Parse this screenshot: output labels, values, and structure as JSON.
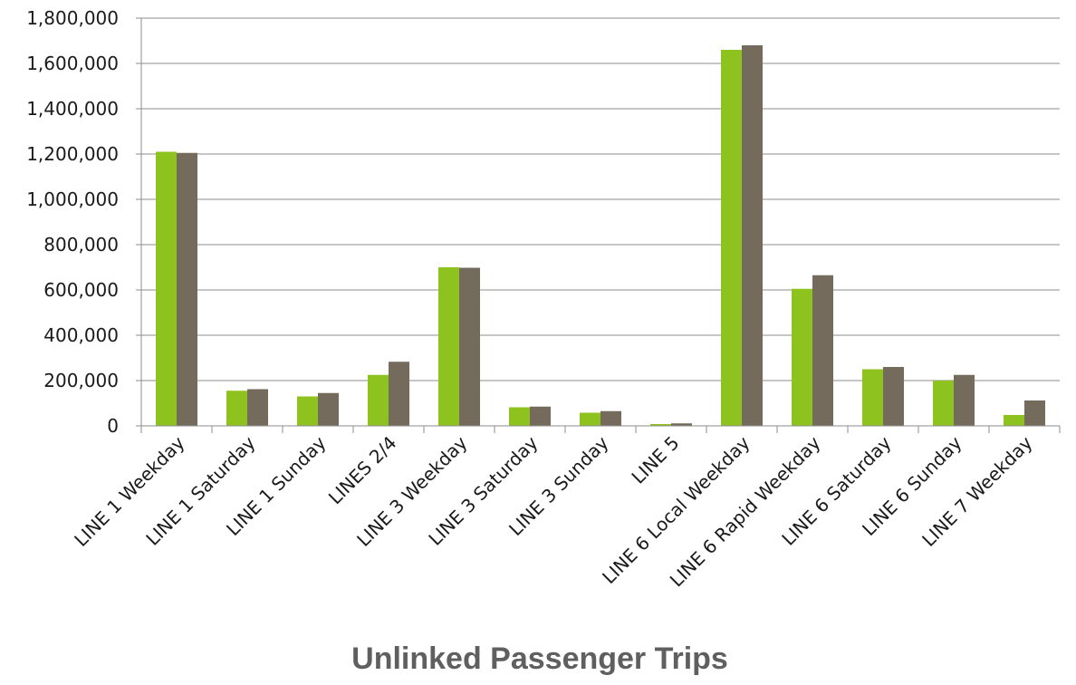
{
  "chart_data": {
    "type": "bar",
    "title": "Unlinked Passenger Trips",
    "xlabel": "",
    "ylabel": "",
    "ylim": [
      0,
      1800000
    ],
    "yticks": [
      0,
      200000,
      400000,
      600000,
      800000,
      1000000,
      1200000,
      1400000,
      1600000,
      1800000
    ],
    "ytick_labels": [
      "0",
      "200,000",
      "400,000",
      "600,000",
      "800,000",
      "1,000,000",
      "1,200,000",
      "1,400,000",
      "1,600,000",
      "1,800,000"
    ],
    "grid": true,
    "legend": "none",
    "categories": [
      "LINE 1 Weekday",
      "LINE 1 Saturday",
      "LINE 1 Sunday",
      "LINES 2/4",
      "LINE 3 Weekday",
      "LINE 3 Saturday",
      "LINE 3 Sunday",
      "LINE 5",
      "LINE 6 Local Weekday",
      "LINE 6 Rapid Weekday",
      "LINE 6 Saturday",
      "LINE 6 Sunday",
      "LINE 7 Weekday"
    ],
    "series": [
      {
        "color": "#8dc21f",
        "values": [
          1210000,
          155000,
          130000,
          225000,
          700000,
          82000,
          58000,
          8000,
          1660000,
          605000,
          250000,
          200000,
          48000
        ]
      },
      {
        "color": "#756b5c",
        "values": [
          1205000,
          162000,
          145000,
          283000,
          698000,
          85000,
          65000,
          11000,
          1680000,
          665000,
          260000,
          225000,
          112000
        ]
      }
    ],
    "colors": {
      "gridline": "#8c8c8c",
      "axis": "#8c8c8c",
      "title": "#5f5f5f",
      "text": "#1a1a1a"
    }
  }
}
